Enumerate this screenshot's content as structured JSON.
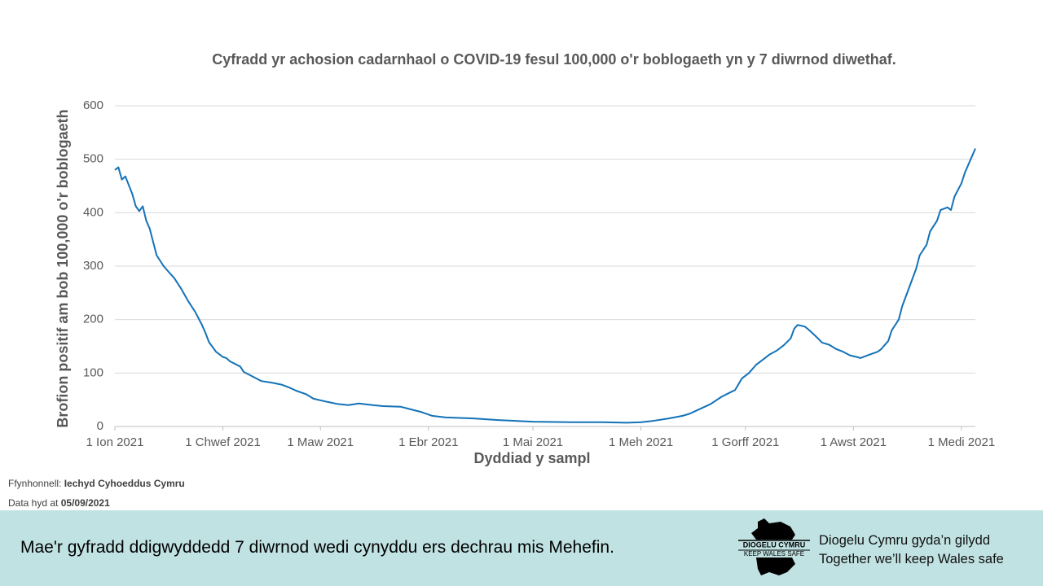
{
  "chart_data": {
    "type": "line",
    "title": "Cyfradd yr achosion cadarnhaol o COVID-19 fesul 100,000 o'r boblogaeth yn y 7 diwrnod diwethaf.",
    "x_label": "Dyddiad y sampl",
    "y_label": "Brofion positif am bob 100,000 o'r boblogaeth",
    "color": "#1372b8",
    "grid": true,
    "xlim": [
      0,
      247
    ],
    "ylim": [
      0,
      600
    ],
    "yticks": [
      0,
      100,
      200,
      300,
      400,
      500,
      600
    ],
    "xticks": [
      {
        "value": 0,
        "label": "1 Ion 2021"
      },
      {
        "value": 31,
        "label": "1 Chwef 2021"
      },
      {
        "value": 59,
        "label": "1 Maw 2021"
      },
      {
        "value": 90,
        "label": "1 Ebr 2021"
      },
      {
        "value": 120,
        "label": "1 Mai 2021"
      },
      {
        "value": 151,
        "label": "1 Meh 2021"
      },
      {
        "value": 181,
        "label": "1 Gorff 2021"
      },
      {
        "value": 212,
        "label": "1 Awst 2021"
      },
      {
        "value": 243,
        "label": "1 Medi 2021"
      }
    ],
    "x": [
      0,
      1,
      2,
      3,
      5,
      6,
      7,
      8,
      9,
      10,
      11,
      12,
      14,
      16,
      17,
      19,
      21,
      23,
      25,
      26,
      27,
      29,
      31,
      32,
      33,
      36,
      37,
      40,
      42,
      45,
      48,
      50,
      52,
      55,
      57,
      61,
      64,
      67,
      70,
      74,
      77,
      82,
      85,
      88,
      91,
      95,
      103,
      110,
      120,
      131,
      140,
      147,
      151,
      154,
      159,
      163,
      165,
      167,
      171,
      174,
      177,
      178,
      180,
      182,
      184,
      186,
      188,
      190,
      192,
      194,
      195,
      196,
      198,
      199,
      201,
      203,
      205,
      207,
      209,
      211,
      213,
      214,
      216,
      219,
      220,
      222,
      223,
      225,
      226,
      228,
      230,
      231,
      233,
      234,
      236,
      237,
      239,
      240,
      241,
      243,
      244,
      247
    ],
    "values": [
      480,
      485,
      462,
      468,
      435,
      412,
      403,
      412,
      385,
      370,
      345,
      320,
      300,
      285,
      278,
      258,
      235,
      215,
      190,
      175,
      158,
      140,
      130,
      128,
      122,
      112,
      102,
      92,
      85,
      82,
      78,
      73,
      67,
      60,
      52,
      46,
      42,
      40,
      43,
      40,
      38,
      37,
      32,
      27,
      20,
      17,
      15,
      12,
      9,
      8,
      8,
      7,
      8,
      10,
      15,
      20,
      24,
      30,
      42,
      55,
      65,
      68,
      90,
      100,
      115,
      125,
      135,
      142,
      152,
      165,
      183,
      190,
      187,
      182,
      170,
      157,
      153,
      145,
      140,
      133,
      130,
      128,
      133,
      140,
      145,
      160,
      180,
      200,
      225,
      260,
      295,
      320,
      340,
      365,
      385,
      405,
      410,
      405,
      430,
      455,
      475,
      520
    ]
  },
  "footer": {
    "source_label": "Ffynhonnell:",
    "source": "Iechyd Cyhoeddus Cymru",
    "date_label": "Data hyd at",
    "date": "05/09/2021"
  },
  "banner": {
    "message": "Mae'r gyfradd ddigwyddedd 7 diwrnod wedi cynyddu ers dechrau mis Mehefin.",
    "logo_top": "DIOGELU CYMRU",
    "logo_bottom": "KEEP WALES SAFE",
    "tagline": [
      "Diogelu Cymru gyda’n gilydd",
      "Together we’ll keep Wales safe"
    ]
  }
}
